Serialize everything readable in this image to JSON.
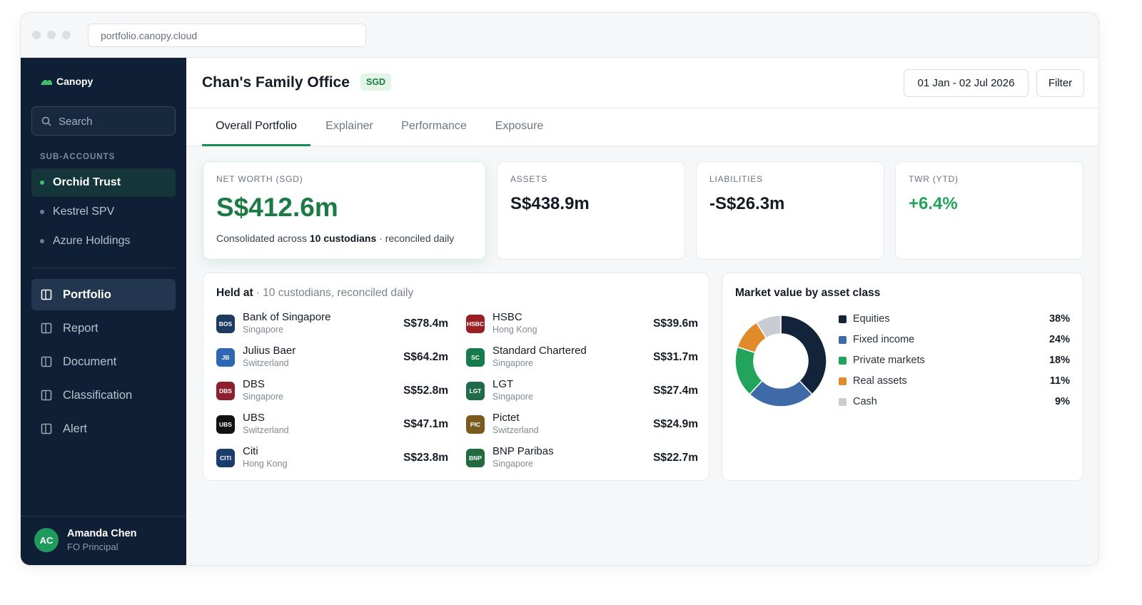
{
  "browser": {
    "url": "portfolio.canopy.cloud"
  },
  "sidebar": {
    "brand": "Canopy",
    "search": "Search",
    "section": "SUB-ACCOUNTS",
    "accounts": [
      "Orchid Trust",
      "Kestrel SPV",
      "Azure Holdings"
    ],
    "nav": [
      "Portfolio",
      "Report",
      "Document",
      "Classification",
      "Alert"
    ],
    "user": {
      "initials": "AC",
      "name": "Amanda Chen",
      "role": "FO Principal"
    }
  },
  "header": {
    "title": "Chan's Family Office",
    "currency": "SGD",
    "date_range": "01 Jan - 02 Jul 2026",
    "filter": "Filter"
  },
  "tabs": [
    "Overall Portfolio",
    "Explainer",
    "Performance",
    "Exposure"
  ],
  "kpis": [
    {
      "label": "NET WORTH (SGD)",
      "value": "S$412.6m",
      "note_prefix": "Consolidated across",
      "note_bold": "10 custodians",
      "note_suffix": "· reconciled daily"
    },
    {
      "label": "ASSETS",
      "value": "S$438.9m"
    },
    {
      "label": "LIABILITIES",
      "value": "-S$26.3m"
    },
    {
      "label": "TWR (YTD)",
      "value": "+6.4%"
    }
  ],
  "custodians": {
    "title": "Held at",
    "subtitle": "· 10 custodians, reconciled daily",
    "items": [
      {
        "code": "BOS",
        "name": "Bank of Singapore",
        "location": "Singapore",
        "value": "S$78.4m",
        "color": "#1d3a63"
      },
      {
        "code": "JB",
        "name": "Julius Baer",
        "location": "Switzerland",
        "value": "S$64.2m",
        "color": "#2f67b3"
      },
      {
        "code": "DBS",
        "name": "DBS",
        "location": "Singapore",
        "value": "S$52.8m",
        "color": "#8e1f2e"
      },
      {
        "code": "UBS",
        "name": "UBS",
        "location": "Switzerland",
        "value": "S$47.1m",
        "color": "#121212"
      },
      {
        "code": "CITI",
        "name": "Citi",
        "location": "Hong Kong",
        "value": "S$23.8m",
        "color": "#1b3d6e"
      },
      {
        "code": "HSBC",
        "name": "HSBC",
        "location": "Hong Kong",
        "value": "S$39.6m",
        "color": "#9a1f24"
      },
      {
        "code": "SC",
        "name": "Standard Chartered",
        "location": "Singapore",
        "value": "S$31.7m",
        "color": "#177a4b"
      },
      {
        "code": "LGT",
        "name": "LGT",
        "location": "Singapore",
        "value": "S$27.4m",
        "color": "#1f6b4a"
      },
      {
        "code": "PIC",
        "name": "Pictet",
        "location": "Switzerland",
        "value": "S$24.9m",
        "color": "#7a5a1f"
      },
      {
        "code": "BNP",
        "name": "BNP Paribas",
        "location": "Singapore",
        "value": "S$22.7m",
        "color": "#1f6b3e"
      }
    ]
  },
  "allocation": {
    "type": "donut",
    "title": "Market value by asset class",
    "categories": [
      "Equities",
      "Fixed income",
      "Private markets",
      "Real assets",
      "Cash"
    ],
    "colors": [
      "#13233a",
      "#3e6aa8",
      "#22a45d",
      "#e08a2a",
      "#c9ccd2"
    ],
    "values": [
      38,
      24,
      18,
      11,
      9
    ],
    "value_labels": [
      "38%",
      "24%",
      "18%",
      "11%",
      "9%"
    ]
  }
}
